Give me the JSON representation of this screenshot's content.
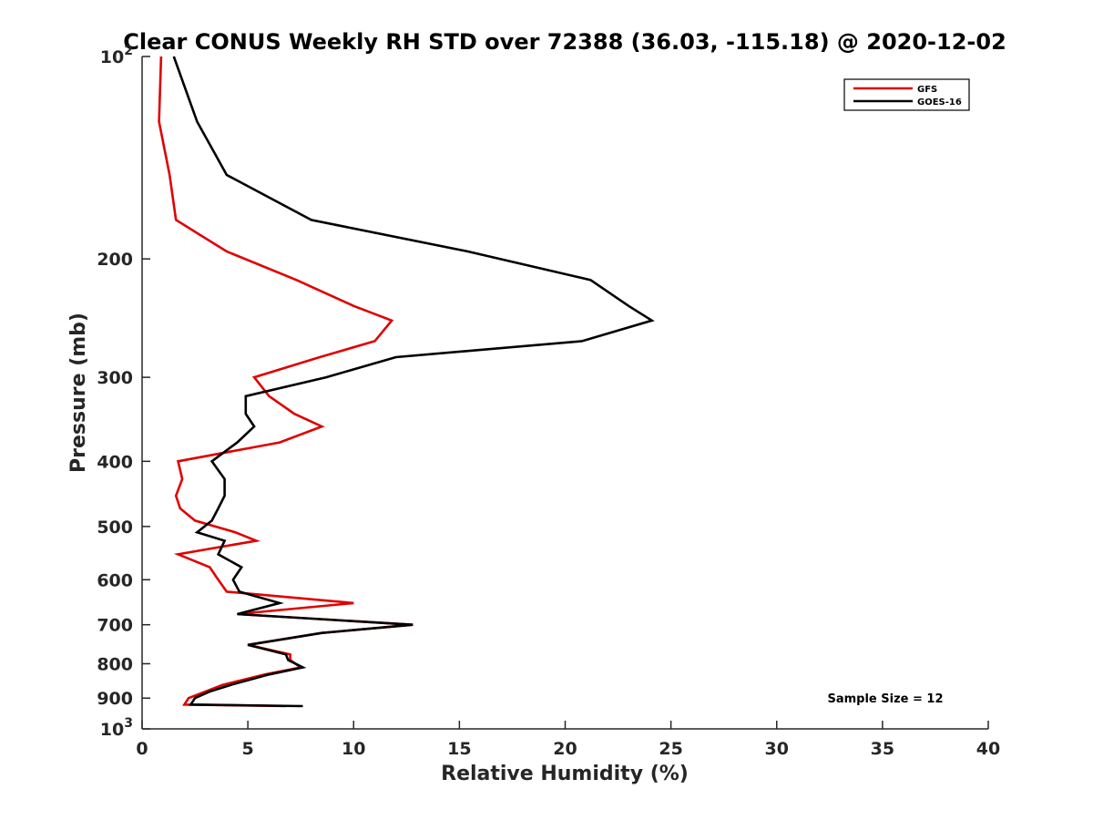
{
  "chart_data": {
    "type": "line",
    "title": "Clear CONUS Weekly RH STD over 72388 (36.03, -115.18) @ 2020-12-02",
    "xlabel": "Relative Humidity (%)",
    "ylabel": "Pressure (mb)",
    "xlim": [
      0,
      40
    ],
    "ylim": [
      100,
      1000
    ],
    "y_scale": "log",
    "y_reversed": true,
    "grid": false,
    "legend_position": "top-right",
    "x_ticks": [
      0,
      5,
      10,
      15,
      20,
      25,
      30,
      35,
      40
    ],
    "y_ticks": [
      {
        "value": 100,
        "base": "10",
        "exp": "2"
      },
      {
        "value": 200,
        "label": "200"
      },
      {
        "value": 300,
        "label": "300"
      },
      {
        "value": 400,
        "label": "400"
      },
      {
        "value": 500,
        "label": "500"
      },
      {
        "value": 600,
        "label": "600"
      },
      {
        "value": 700,
        "label": "700"
      },
      {
        "value": 800,
        "label": "800"
      },
      {
        "value": 900,
        "label": "900"
      },
      {
        "value": 1000,
        "base": "10",
        "exp": "3"
      }
    ],
    "annotation": "Sample Size = 12",
    "series": [
      {
        "name": "GFS",
        "color": "#e00000",
        "points": [
          [
            0.9,
            100
          ],
          [
            0.8,
            125
          ],
          [
            1.3,
            150
          ],
          [
            1.6,
            175
          ],
          [
            4.0,
            195
          ],
          [
            7.3,
            215
          ],
          [
            10.0,
            235
          ],
          [
            11.8,
            247
          ],
          [
            11.0,
            265
          ],
          [
            8.4,
            280
          ],
          [
            5.3,
            300
          ],
          [
            6.0,
            320
          ],
          [
            7.2,
            340
          ],
          [
            8.5,
            355
          ],
          [
            6.5,
            375
          ],
          [
            1.7,
            400
          ],
          [
            1.9,
            425
          ],
          [
            1.6,
            450
          ],
          [
            1.8,
            470
          ],
          [
            2.5,
            490
          ],
          [
            4.4,
            510
          ],
          [
            5.4,
            525
          ],
          [
            1.7,
            550
          ],
          [
            3.2,
            575
          ],
          [
            3.6,
            600
          ],
          [
            4.0,
            625
          ],
          [
            10.0,
            650
          ],
          [
            4.5,
            675
          ],
          [
            12.8,
            700
          ],
          [
            8.5,
            720
          ],
          [
            5.0,
            750
          ],
          [
            7.0,
            775
          ],
          [
            7.0,
            790
          ],
          [
            7.5,
            810
          ],
          [
            5.8,
            830
          ],
          [
            3.8,
            860
          ],
          [
            3.0,
            880
          ],
          [
            2.2,
            900
          ],
          [
            2.0,
            920
          ],
          [
            6.8,
            925
          ]
        ]
      },
      {
        "name": "GOES-16",
        "color": "#000000",
        "points": [
          [
            1.5,
            100
          ],
          [
            2.6,
            125
          ],
          [
            4.0,
            150
          ],
          [
            8.0,
            175
          ],
          [
            15.4,
            195
          ],
          [
            21.2,
            215
          ],
          [
            23.0,
            235
          ],
          [
            24.1,
            247
          ],
          [
            20.8,
            265
          ],
          [
            12.0,
            280
          ],
          [
            8.7,
            300
          ],
          [
            4.9,
            320
          ],
          [
            4.9,
            340
          ],
          [
            5.3,
            355
          ],
          [
            4.5,
            375
          ],
          [
            3.3,
            400
          ],
          [
            3.9,
            425
          ],
          [
            3.9,
            450
          ],
          [
            3.6,
            470
          ],
          [
            3.3,
            490
          ],
          [
            2.6,
            510
          ],
          [
            3.9,
            525
          ],
          [
            3.6,
            550
          ],
          [
            4.7,
            575
          ],
          [
            4.3,
            600
          ],
          [
            4.6,
            625
          ],
          [
            6.5,
            650
          ],
          [
            4.5,
            675
          ],
          [
            12.8,
            700
          ],
          [
            8.5,
            720
          ],
          [
            5.0,
            750
          ],
          [
            6.8,
            775
          ],
          [
            6.9,
            790
          ],
          [
            7.6,
            810
          ],
          [
            6.0,
            830
          ],
          [
            4.2,
            860
          ],
          [
            3.2,
            880
          ],
          [
            2.5,
            900
          ],
          [
            2.3,
            920
          ],
          [
            7.6,
            925
          ]
        ]
      }
    ]
  }
}
